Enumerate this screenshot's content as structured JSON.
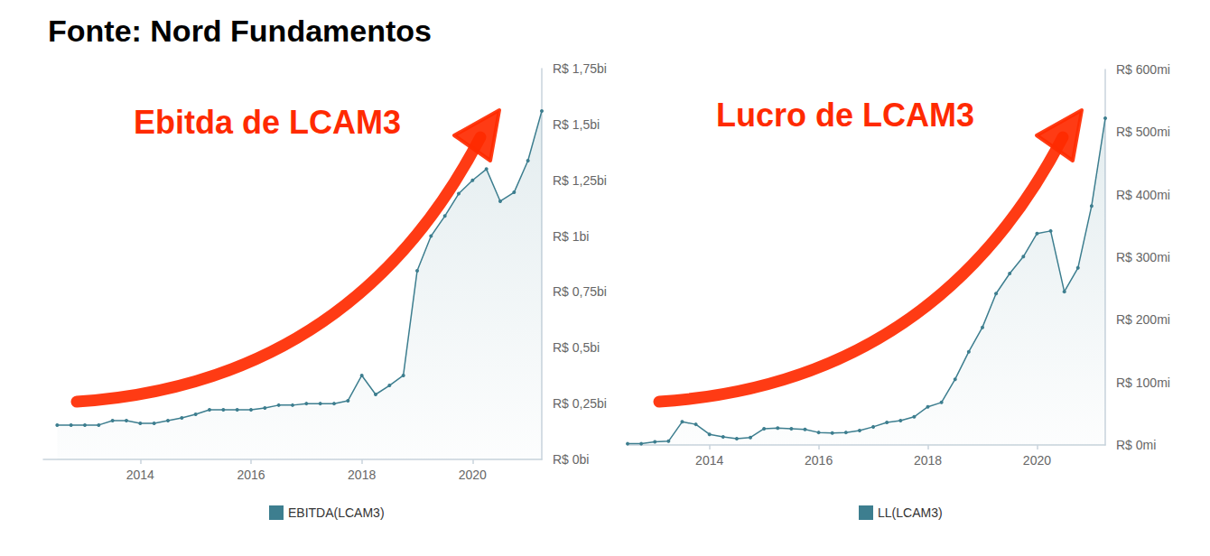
{
  "header": {
    "title": "Fonte: Nord Fundamentos"
  },
  "chart_data": [
    {
      "type": "area",
      "annotation": "Ebitda de LCAM3",
      "x": [
        2012.5,
        2012.75,
        2013,
        2013.25,
        2013.5,
        2013.75,
        2014,
        2014.25,
        2014.5,
        2014.75,
        2015,
        2015.25,
        2015.5,
        2015.75,
        2016,
        2016.25,
        2016.5,
        2016.75,
        2017,
        2017.25,
        2017.5,
        2017.75,
        2018,
        2018.25,
        2018.5,
        2018.75,
        2019,
        2019.25,
        2019.5,
        2019.75,
        2020,
        2020.25,
        2020.5,
        2020.75,
        2021,
        2021.25
      ],
      "series": [
        {
          "name": "EBITDA(LCAM3)",
          "color": "#3d7e8f",
          "marker": "circle",
          "line_style": "solid",
          "values": [
            0.154,
            0.154,
            0.154,
            0.154,
            0.174,
            0.174,
            0.162,
            0.162,
            0.174,
            0.186,
            0.202,
            0.222,
            0.222,
            0.222,
            0.222,
            0.23,
            0.243,
            0.243,
            0.25,
            0.25,
            0.25,
            0.263,
            0.376,
            0.291,
            0.331,
            0.376,
            0.845,
            1.0,
            1.09,
            1.19,
            1.25,
            1.3,
            1.156,
            1.196,
            1.338,
            1.56
          ]
        }
      ],
      "xlim": [
        2012.25,
        2021.25
      ],
      "xticks": [
        2014,
        2016,
        2018,
        2020
      ],
      "ylim": [
        0,
        1.75
      ],
      "yticks": [
        {
          "value": 0,
          "label": "R$ 0bi"
        },
        {
          "value": 0.25,
          "label": "R$ 0,25bi"
        },
        {
          "value": 0.5,
          "label": "R$ 0,5bi"
        },
        {
          "value": 0.75,
          "label": "R$ 0,75bi"
        },
        {
          "value": 1,
          "label": "R$ 1bi"
        },
        {
          "value": 1.25,
          "label": "R$ 1,25bi"
        },
        {
          "value": 1.5,
          "label": "R$ 1,5bi"
        },
        {
          "value": 1.75,
          "label": "R$ 1,75bi"
        }
      ],
      "grid": false,
      "legend": "bottom"
    },
    {
      "type": "area",
      "annotation": "Lucro de LCAM3",
      "x": [
        2012.5,
        2012.75,
        2013,
        2013.25,
        2013.5,
        2013.75,
        2014,
        2014.25,
        2014.5,
        2014.75,
        2015,
        2015.25,
        2015.5,
        2015.75,
        2016,
        2016.25,
        2016.5,
        2016.75,
        2017,
        2017.25,
        2017.5,
        2017.75,
        2018,
        2018.25,
        2018.5,
        2018.75,
        2019,
        2019.25,
        2019.5,
        2019.75,
        2020,
        2020.25,
        2020.5,
        2020.75,
        2021,
        2021.25
      ],
      "series": [
        {
          "name": "LL(LCAM3)",
          "color": "#3d7e8f",
          "marker": "circle",
          "line_style": "solid",
          "values": [
            2,
            2,
            5,
            6,
            37,
            33,
            17,
            13,
            10,
            12,
            26,
            27,
            26,
            25,
            20,
            19,
            20,
            23,
            29,
            36,
            39,
            45,
            61,
            68,
            105,
            149,
            188,
            242,
            274,
            301,
            338,
            342,
            245,
            283,
            382,
            522
          ]
        }
      ],
      "xlim": [
        2012.5,
        2021.25
      ],
      "xticks": [
        2014,
        2016,
        2018,
        2020
      ],
      "ylim": [
        0,
        600
      ],
      "yticks": [
        {
          "value": 0,
          "label": "R$ 0mi"
        },
        {
          "value": 100,
          "label": "R$ 100mi"
        },
        {
          "value": 200,
          "label": "R$ 200mi"
        },
        {
          "value": 300,
          "label": "R$ 300mi"
        },
        {
          "value": 400,
          "label": "R$ 400mi"
        },
        {
          "value": 500,
          "label": "R$ 500mi"
        },
        {
          "value": 600,
          "label": "R$ 600mi"
        }
      ],
      "grid": false,
      "legend": "bottom"
    }
  ]
}
